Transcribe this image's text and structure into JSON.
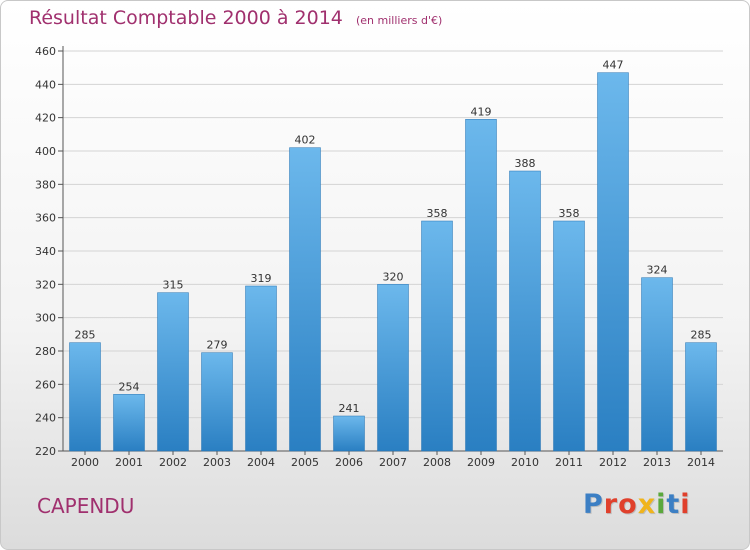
{
  "header": {
    "title": "Résultat Comptable 2000 à 2014",
    "unit": "(en milliers d'€)"
  },
  "footer": {
    "commune": "CAPENDU",
    "logo_text": "Proxiti"
  },
  "colors": {
    "title": "#a0306e",
    "bar_light": "#6cb8ec",
    "bar_dark": "#2a7fc2",
    "logo_letters": [
      "#3c7fc4",
      "#e0402c",
      "#e0402c",
      "#f0b41c",
      "#5aa83c",
      "#3c7fc4",
      "#e0402c"
    ]
  },
  "chart_data": {
    "type": "bar",
    "title": "Résultat Comptable 2000 à 2014",
    "subtitle": "(en milliers d'€)",
    "categories": [
      "2000",
      "2001",
      "2002",
      "2003",
      "2004",
      "2005",
      "2006",
      "2007",
      "2008",
      "2009",
      "2010",
      "2011",
      "2012",
      "2013",
      "2014"
    ],
    "values": [
      285,
      254,
      315,
      279,
      319,
      402,
      241,
      320,
      358,
      419,
      388,
      358,
      447,
      324,
      285
    ],
    "ylim": [
      220,
      460
    ],
    "yticks": [
      220,
      240,
      260,
      280,
      300,
      320,
      340,
      360,
      380,
      400,
      420,
      440,
      460
    ],
    "grid": true,
    "xlabel": "",
    "ylabel": ""
  }
}
